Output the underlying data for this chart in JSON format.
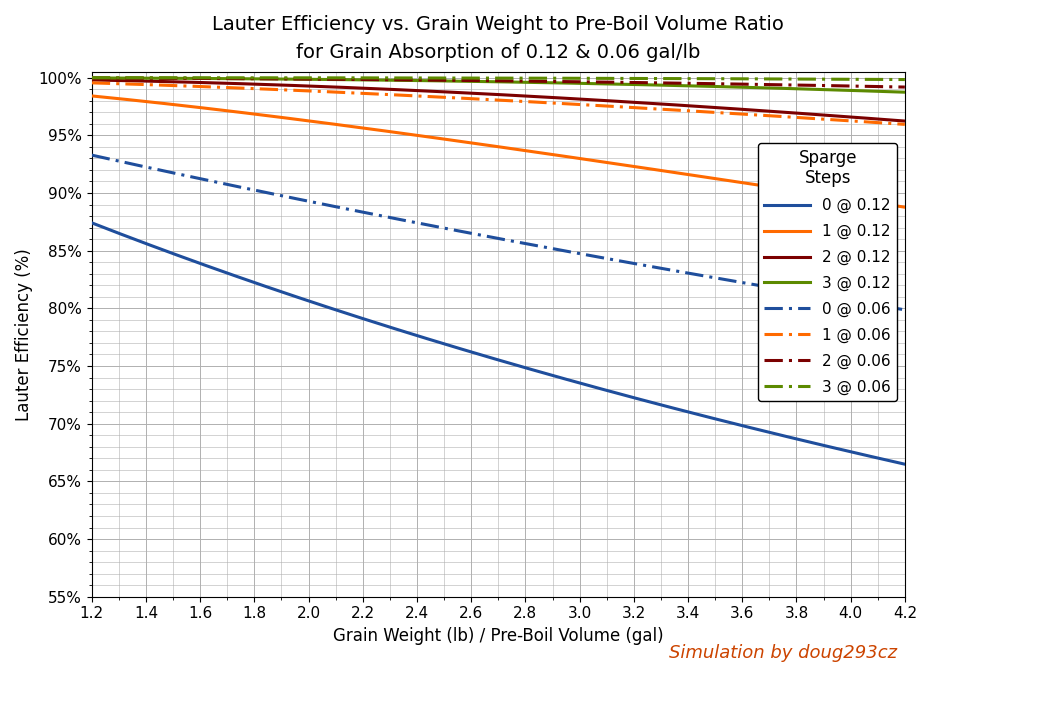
{
  "title_line1": "Lauter Efficiency vs. Grain Weight to Pre-Boil Volume Ratio",
  "title_line2": "for Grain Absorption of 0.12 & 0.06 gal/lb",
  "xlabel": "Grain Weight (lb) / Pre-Boil Volume (gal)",
  "ylabel": "Lauter Efficiency (%)",
  "watermark": "Simulation by doug293cz",
  "legend_title": "Sparge\nSteps",
  "x_min": 1.2,
  "x_max": 4.2,
  "y_min": 0.55,
  "y_max": 1.005,
  "x_ticks": [
    1.2,
    1.4,
    1.6,
    1.8,
    2.0,
    2.2,
    2.4,
    2.6,
    2.8,
    3.0,
    3.2,
    3.4,
    3.6,
    3.8,
    4.0,
    4.2
  ],
  "y_ticks": [
    0.55,
    0.6,
    0.65,
    0.7,
    0.75,
    0.8,
    0.85,
    0.9,
    0.95,
    1.0
  ],
  "absorptions": [
    0.12,
    0.06
  ],
  "sparge_counts": [
    0,
    1,
    2,
    3
  ],
  "colors": [
    "#1f4e9c",
    "#ff6a00",
    "#7b0000",
    "#5c8a00"
  ],
  "line_width": 2.2,
  "background_color": "#ffffff",
  "grid_color": "#b0b0b0",
  "legend_labels_012": [
    "0 @ 0.12",
    "1 @ 0.12",
    "2 @ 0.12",
    "3 @ 0.12"
  ],
  "legend_labels_006": [
    "0 @ 0.06",
    "1 @ 0.06",
    "2 @ 0.06",
    "3 @ 0.06"
  ],
  "title_fontsize": 14,
  "subtitle_fontsize": 12,
  "axis_label_fontsize": 12,
  "tick_fontsize": 11,
  "legend_fontsize": 11,
  "watermark_fontsize": 13
}
